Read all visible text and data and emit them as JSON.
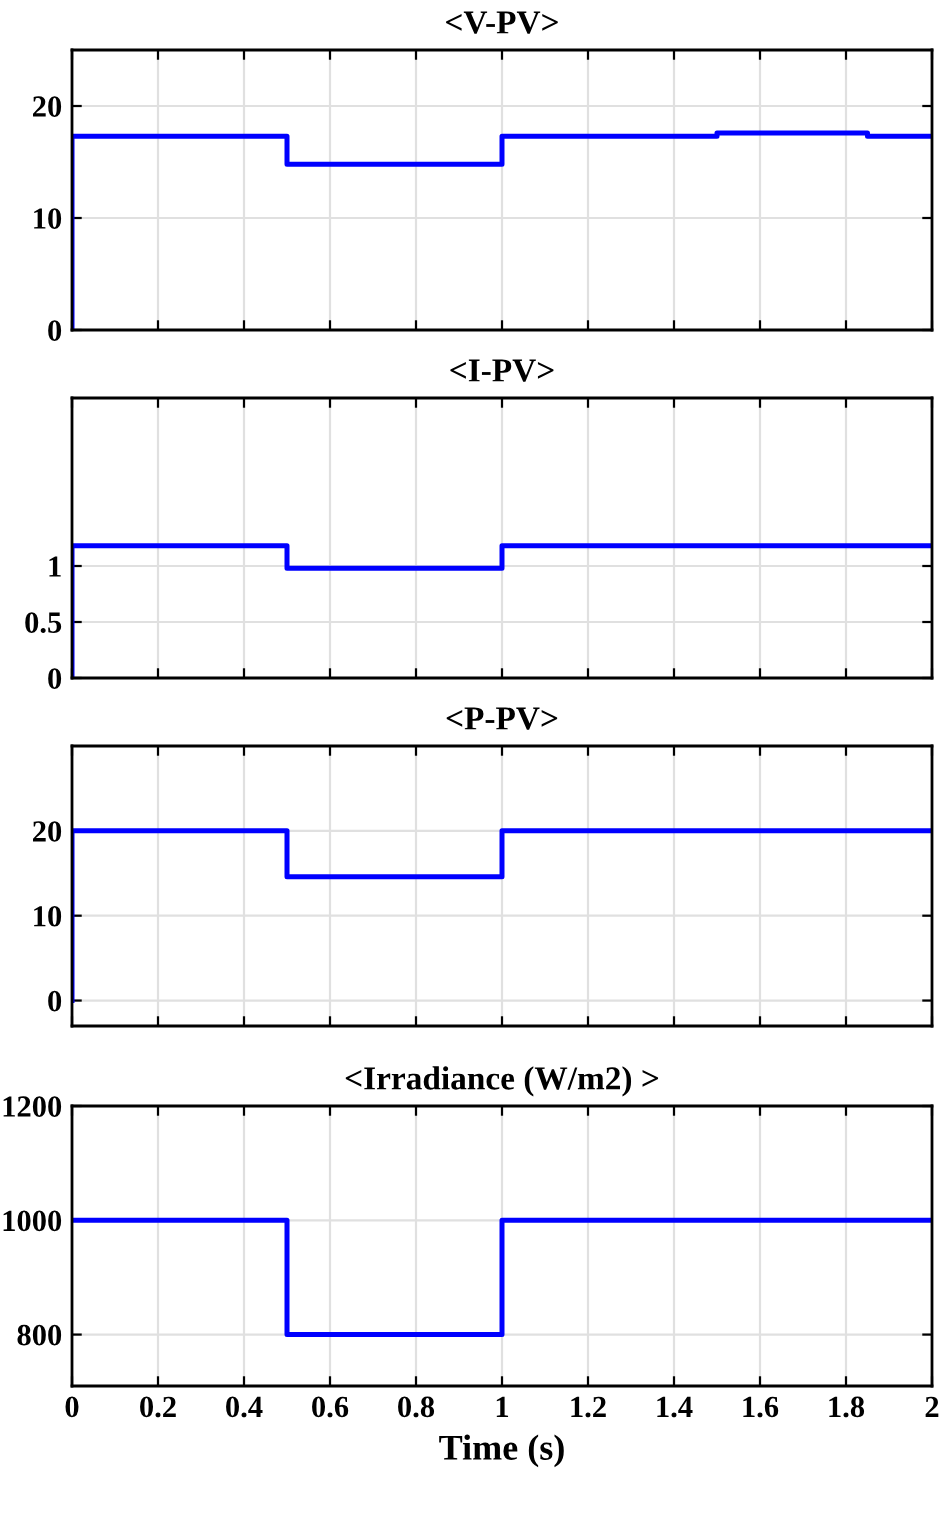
{
  "chart_data": [
    {
      "type": "line",
      "title": "<V-PV>",
      "grid": true,
      "tick_labels": "y",
      "xlim": [
        0,
        2
      ],
      "xticks": [
        0,
        0.2,
        0.4,
        0.6,
        0.8,
        1,
        1.2,
        1.4,
        1.6,
        1.8,
        2
      ],
      "ylim": [
        0,
        25
      ],
      "yticks": [
        0,
        10,
        20
      ],
      "series": [
        {
          "color": "#0000ff",
          "x": [
            0,
            0,
            0.5,
            0.5,
            1,
            1,
            1.5,
            1.5,
            1.85,
            1.85,
            2
          ],
          "values": [
            0,
            17.3,
            17.3,
            14.8,
            14.8,
            17.3,
            17.3,
            17.6,
            17.6,
            17.3,
            17.3
          ]
        }
      ]
    },
    {
      "type": "line",
      "title": "<I-PV>",
      "grid": true,
      "tick_labels": "y",
      "xlim": [
        0,
        2
      ],
      "xticks": [
        0,
        0.2,
        0.4,
        0.6,
        0.8,
        1,
        1.2,
        1.4,
        1.6,
        1.8,
        2
      ],
      "ylim": [
        0,
        2.5
      ],
      "yticks": [
        0,
        0.5,
        1
      ],
      "series": [
        {
          "color": "#0000ff",
          "x": [
            0,
            0,
            0.5,
            0.5,
            1,
            1,
            2
          ],
          "values": [
            0,
            1.18,
            1.18,
            0.98,
            0.98,
            1.18,
            1.18
          ]
        }
      ]
    },
    {
      "type": "line",
      "title": "<P-PV>",
      "grid": true,
      "tick_labels": "y",
      "xlim": [
        0,
        2
      ],
      "xticks": [
        0,
        0.2,
        0.4,
        0.6,
        0.8,
        1,
        1.2,
        1.4,
        1.6,
        1.8,
        2
      ],
      "ylim": [
        -3,
        30
      ],
      "yticks": [
        0,
        10,
        20
      ],
      "series": [
        {
          "color": "#0000ff",
          "x": [
            0,
            0,
            0.5,
            0.5,
            1,
            1,
            2
          ],
          "values": [
            0,
            20,
            20,
            14.6,
            14.6,
            20,
            20
          ]
        }
      ]
    },
    {
      "type": "line",
      "title": "<Irradiance (W/m2) >",
      "xlabel": "Time (s)",
      "grid": true,
      "xlim": [
        0,
        2
      ],
      "xticks": [
        0,
        0.2,
        0.4,
        0.6,
        0.8,
        1,
        1.2,
        1.4,
        1.6,
        1.8,
        2
      ],
      "ylim": [
        710,
        1200
      ],
      "yticks": [
        800,
        1000,
        1200
      ],
      "series": [
        {
          "color": "#0000ff",
          "x": [
            0,
            0.5,
            0.5,
            1,
            1,
            2
          ],
          "values": [
            1000,
            1000,
            800,
            800,
            1000,
            1000
          ]
        }
      ]
    }
  ]
}
